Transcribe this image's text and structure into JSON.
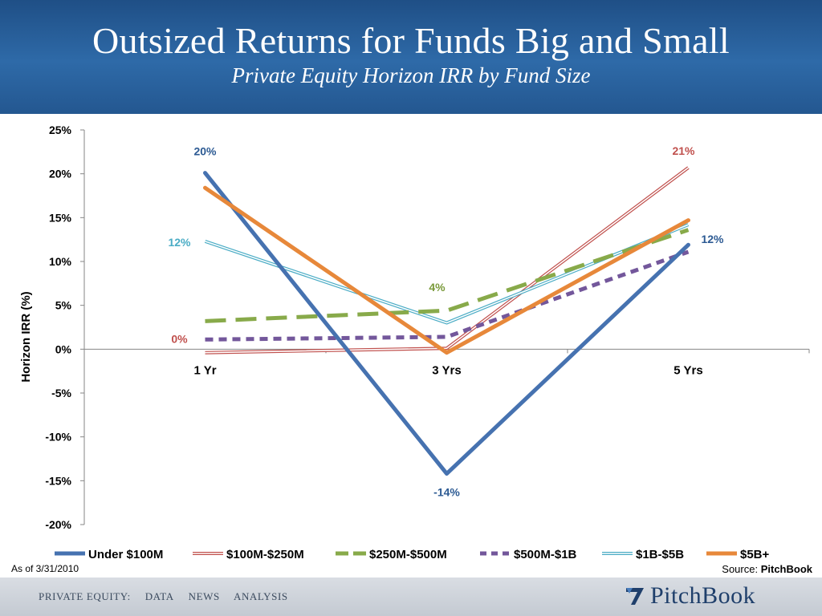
{
  "header": {
    "title": "Outsized Returns for Funds Big and Small",
    "subtitle": "Private Equity Horizon IRR by Fund Size"
  },
  "footer": {
    "as_of": "As of 3/31/2010",
    "source_prefix": "Source: ",
    "source_name": "PitchBook",
    "nav": [
      "PRIVATE EQUITY:",
      "DATA",
      "NEWS",
      "ANALYSIS"
    ],
    "logo_text": "PitchBook"
  },
  "colors": {
    "under_100m": "#4672b0",
    "100m_250m": "#c0504d",
    "250m_500m": "#88aa4a",
    "500m_1b": "#73579b",
    "1b_5b": "#4aacc5",
    "5b_plus": "#e7883a"
  },
  "chart_data": {
    "type": "line",
    "title": "",
    "xlabel": "",
    "ylabel": "Horizon IRR (%)",
    "categories": [
      "1 Yr",
      "3 Yrs",
      "5 Yrs"
    ],
    "ylim": [
      -20,
      25
    ],
    "yticks": [
      "25%",
      "20%",
      "15%",
      "10%",
      "5%",
      "0%",
      "-5%",
      "-10%",
      "-15%",
      "-20%"
    ],
    "legend_position": "bottom",
    "series": [
      {
        "name": "Under $100M",
        "values": [
          20.1,
          -14.2,
          11.9
        ],
        "color": "#4672b0",
        "style": "solid-thick"
      },
      {
        "name": "$100M-$250M",
        "values": [
          -0.4,
          0.1,
          20.7
        ],
        "color": "#c0504d",
        "style": "double"
      },
      {
        "name": "$250M-$500M",
        "values": [
          3.2,
          4.4,
          13.6
        ],
        "color": "#88aa4a",
        "style": "dashed-long"
      },
      {
        "name": "$500M-$1B",
        "values": [
          1.1,
          1.4,
          11.1
        ],
        "color": "#73579b",
        "style": "dashed-short"
      },
      {
        "name": "$1B-$5B",
        "values": [
          12.3,
          3.0,
          14.2
        ],
        "color": "#4aacc5",
        "style": "double"
      },
      {
        "name": "$5B+",
        "values": [
          18.4,
          -0.4,
          14.7
        ],
        "color": "#e7883a",
        "style": "solid-thick"
      }
    ],
    "annotations": [
      {
        "text": "20%",
        "series": 0,
        "point": 0,
        "color": "#2c5a93"
      },
      {
        "text": "-14%",
        "series": 0,
        "point": 1,
        "color": "#2c5a93"
      },
      {
        "text": "12%",
        "series": 0,
        "point": 2,
        "color": "#2c5a93"
      },
      {
        "text": "0%",
        "series": 1,
        "point": 0,
        "color": "#c0504d"
      },
      {
        "text": "21%",
        "series": 1,
        "point": 2,
        "color": "#c0504d"
      },
      {
        "text": "4%",
        "series": 2,
        "point": 1,
        "color": "#7a9a3a"
      },
      {
        "text": "12%",
        "series": 4,
        "point": 0,
        "color": "#4aacc5"
      }
    ]
  }
}
